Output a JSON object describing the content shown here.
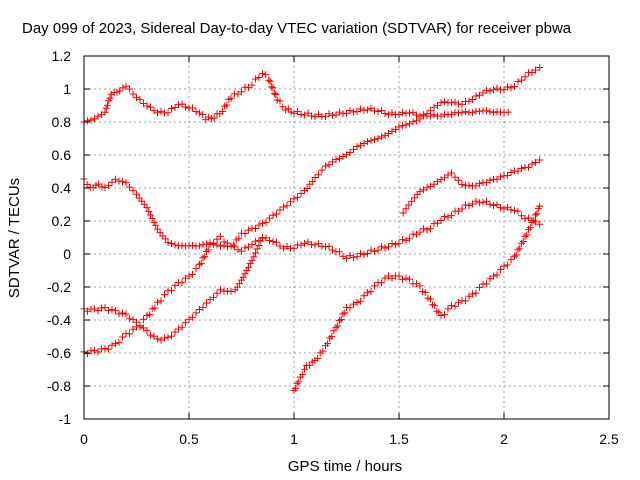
{
  "chart_data": {
    "type": "scatter",
    "title": "Day 099 of 2023, Sidereal Day-to-day VTEC variation (SDTVAR) for receiver pbwa",
    "xlabel": "GPS time / hours",
    "ylabel": "SDTVAR / TECUs",
    "xlim": [
      0,
      2.5
    ],
    "ylim": [
      -1,
      1.2
    ],
    "xticks": [
      0,
      0.5,
      1,
      1.5,
      2,
      2.5
    ],
    "xtick_labels": [
      "0",
      "0.5",
      "1",
      "1.5",
      "2",
      "2.5"
    ],
    "yticks": [
      -1,
      -0.8,
      -0.6,
      -0.4,
      -0.2,
      0,
      0.2,
      0.4,
      0.6,
      0.8,
      1,
      1.2
    ],
    "ytick_labels": [
      "-1",
      "-0.8",
      "-0.6",
      "-0.4",
      "-0.2",
      "0",
      "0.2",
      "0.4",
      "0.6",
      "0.8",
      "1",
      "1.2"
    ],
    "grid": true,
    "marker": "+",
    "marker_color": "#ff0000",
    "series": [
      {
        "points": [
          [
            0,
            0.8
          ],
          [
            0.05,
            0.82
          ],
          [
            0.1,
            0.86
          ],
          [
            0.13,
            0.97
          ],
          [
            0.17,
            0.99
          ],
          [
            0.2,
            1.02
          ],
          [
            0.25,
            0.95
          ],
          [
            0.3,
            0.9
          ],
          [
            0.35,
            0.86
          ],
          [
            0.4,
            0.86
          ],
          [
            0.45,
            0.91
          ],
          [
            0.5,
            0.89
          ],
          [
            0.55,
            0.86
          ],
          [
            0.58,
            0.82
          ],
          [
            0.62,
            0.83
          ],
          [
            0.66,
            0.87
          ],
          [
            0.7,
            0.95
          ],
          [
            0.75,
            0.99
          ],
          [
            0.8,
            1.03
          ],
          [
            0.85,
            1.1
          ],
          [
            0.88,
            1.06
          ],
          [
            0.92,
            0.94
          ],
          [
            0.96,
            0.88
          ],
          [
            1.0,
            0.86
          ],
          [
            1.05,
            0.85
          ],
          [
            1.1,
            0.84
          ],
          [
            1.15,
            0.84
          ],
          [
            1.2,
            0.85
          ],
          [
            1.25,
            0.86
          ],
          [
            1.3,
            0.87
          ],
          [
            1.35,
            0.88
          ],
          [
            1.4,
            0.87
          ],
          [
            1.45,
            0.85
          ],
          [
            1.5,
            0.85
          ],
          [
            1.55,
            0.86
          ],
          [
            1.6,
            0.84
          ],
          [
            1.65,
            0.84
          ],
          [
            1.7,
            0.84
          ],
          [
            1.75,
            0.85
          ],
          [
            1.8,
            0.86
          ],
          [
            1.85,
            0.86
          ],
          [
            1.9,
            0.87
          ],
          [
            1.95,
            0.86
          ],
          [
            2.0,
            0.86
          ],
          [
            2.02,
            0.86
          ]
        ]
      },
      {
        "points": [
          [
            0,
            0.45
          ],
          [
            0.03,
            0.4
          ],
          [
            0.07,
            0.42
          ],
          [
            0.1,
            0.4
          ],
          [
            0.15,
            0.45
          ],
          [
            0.2,
            0.43
          ],
          [
            0.25,
            0.36
          ],
          [
            0.3,
            0.28
          ],
          [
            0.35,
            0.15
          ],
          [
            0.4,
            0.07
          ],
          [
            0.45,
            0.05
          ],
          [
            0.5,
            0.05
          ],
          [
            0.55,
            0.05
          ],
          [
            0.6,
            0.07
          ],
          [
            0.65,
            0.05
          ],
          [
            0.7,
            0.05
          ],
          [
            0.75,
            0.02
          ],
          [
            0.8,
            0.06
          ],
          [
            0.85,
            0.1
          ],
          [
            0.9,
            0.08
          ],
          [
            0.95,
            0.04
          ],
          [
            1.0,
            0.04
          ],
          [
            1.05,
            0.07
          ],
          [
            1.1,
            0.06
          ],
          [
            1.15,
            0.05
          ],
          [
            1.2,
            0.02
          ],
          [
            1.25,
            -0.02
          ],
          [
            1.3,
            -0.01
          ],
          [
            1.35,
            0.01
          ],
          [
            1.4,
            0.03
          ],
          [
            1.45,
            0.05
          ],
          [
            1.5,
            0.07
          ],
          [
            1.55,
            0.1
          ],
          [
            1.6,
            0.14
          ],
          [
            1.65,
            0.16
          ],
          [
            1.7,
            0.21
          ],
          [
            1.75,
            0.24
          ],
          [
            1.8,
            0.28
          ],
          [
            1.85,
            0.31
          ],
          [
            1.9,
            0.32
          ],
          [
            1.95,
            0.3
          ],
          [
            2.0,
            0.28
          ],
          [
            2.05,
            0.27
          ],
          [
            2.1,
            0.22
          ],
          [
            2.15,
            0.2
          ],
          [
            2.17,
            0.18
          ]
        ]
      },
      {
        "points": [
          [
            0,
            -0.34
          ],
          [
            0.05,
            -0.34
          ],
          [
            0.1,
            -0.33
          ],
          [
            0.15,
            -0.35
          ],
          [
            0.2,
            -0.37
          ],
          [
            0.25,
            -0.42
          ],
          [
            0.3,
            -0.47
          ],
          [
            0.35,
            -0.52
          ],
          [
            0.4,
            -0.51
          ],
          [
            0.45,
            -0.46
          ],
          [
            0.5,
            -0.4
          ],
          [
            0.55,
            -0.34
          ],
          [
            0.6,
            -0.28
          ],
          [
            0.65,
            -0.22
          ],
          [
            0.7,
            -0.23
          ],
          [
            0.72,
            -0.22
          ],
          [
            0.75,
            -0.16
          ],
          [
            0.8,
            -0.04
          ],
          [
            0.85,
            0.1
          ]
        ]
      },
      {
        "points": [
          [
            0,
            -0.6
          ],
          [
            0.05,
            -0.59
          ],
          [
            0.1,
            -0.58
          ],
          [
            0.15,
            -0.55
          ],
          [
            0.2,
            -0.49
          ],
          [
            0.25,
            -0.45
          ],
          [
            0.3,
            -0.38
          ],
          [
            0.35,
            -0.3
          ],
          [
            0.4,
            -0.23
          ],
          [
            0.45,
            -0.18
          ],
          [
            0.5,
            -0.14
          ],
          [
            0.55,
            -0.07
          ],
          [
            0.6,
            0.05
          ],
          [
            0.65,
            0.1
          ],
          [
            0.7,
            0.04
          ],
          [
            0.75,
            0.12
          ],
          [
            0.8,
            0.15
          ],
          [
            0.85,
            0.18
          ],
          [
            0.9,
            0.23
          ],
          [
            0.95,
            0.28
          ],
          [
            1.0,
            0.33
          ],
          [
            1.05,
            0.38
          ],
          [
            1.1,
            0.46
          ],
          [
            1.15,
            0.53
          ],
          [
            1.2,
            0.57
          ],
          [
            1.25,
            0.6
          ],
          [
            1.3,
            0.65
          ],
          [
            1.35,
            0.68
          ],
          [
            1.4,
            0.7
          ],
          [
            1.45,
            0.73
          ],
          [
            1.5,
            0.77
          ],
          [
            1.55,
            0.79
          ],
          [
            1.6,
            0.82
          ],
          [
            1.65,
            0.87
          ],
          [
            1.7,
            0.92
          ],
          [
            1.75,
            0.92
          ],
          [
            1.8,
            0.91
          ],
          [
            1.85,
            0.94
          ],
          [
            1.9,
            0.98
          ],
          [
            1.95,
            1.0
          ],
          [
            2.0,
            1.0
          ],
          [
            2.05,
            1.02
          ],
          [
            2.1,
            1.08
          ],
          [
            2.15,
            1.12
          ],
          [
            2.17,
            1.13
          ]
        ]
      },
      {
        "points": [
          [
            1.0,
            -0.83
          ],
          [
            1.03,
            -0.75
          ],
          [
            1.06,
            -0.68
          ],
          [
            1.1,
            -0.65
          ],
          [
            1.15,
            -0.56
          ],
          [
            1.2,
            -0.45
          ],
          [
            1.25,
            -0.33
          ],
          [
            1.3,
            -0.3
          ],
          [
            1.35,
            -0.24
          ],
          [
            1.4,
            -0.18
          ],
          [
            1.45,
            -0.14
          ],
          [
            1.5,
            -0.14
          ],
          [
            1.55,
            -0.16
          ],
          [
            1.6,
            -0.2
          ],
          [
            1.65,
            -0.28
          ],
          [
            1.7,
            -0.38
          ],
          [
            1.75,
            -0.32
          ],
          [
            1.8,
            -0.29
          ],
          [
            1.85,
            -0.25
          ],
          [
            1.9,
            -0.19
          ],
          [
            1.95,
            -0.14
          ],
          [
            2.0,
            -0.08
          ],
          [
            2.05,
            -0.02
          ],
          [
            2.1,
            0.1
          ],
          [
            2.15,
            0.23
          ],
          [
            2.17,
            0.29
          ]
        ]
      },
      {
        "points": [
          [
            1.52,
            0.25
          ],
          [
            1.56,
            0.32
          ],
          [
            1.6,
            0.38
          ],
          [
            1.65,
            0.41
          ],
          [
            1.7,
            0.45
          ],
          [
            1.75,
            0.49
          ],
          [
            1.8,
            0.42
          ],
          [
            1.85,
            0.41
          ],
          [
            1.9,
            0.43
          ],
          [
            1.95,
            0.45
          ],
          [
            2.0,
            0.47
          ],
          [
            2.05,
            0.5
          ],
          [
            2.1,
            0.52
          ],
          [
            2.15,
            0.55
          ],
          [
            2.17,
            0.57
          ]
        ]
      }
    ]
  }
}
